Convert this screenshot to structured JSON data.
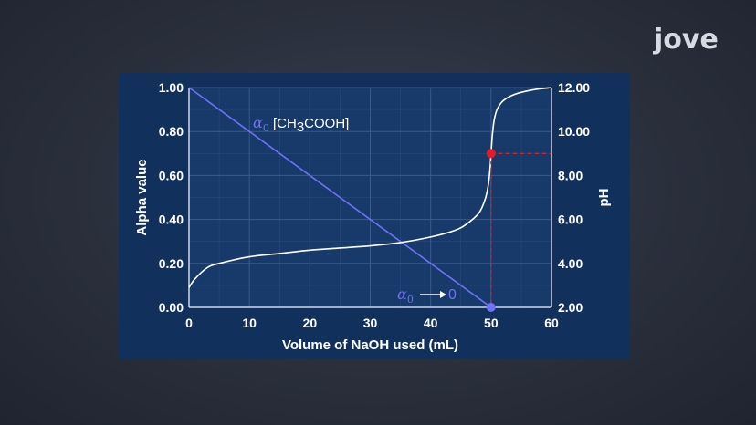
{
  "logo": {
    "text": "jove"
  },
  "colors": {
    "alpha_line": "#6f72f5",
    "ph_curve": "#ffffff",
    "equivalence_marker": "#e11d2a",
    "alpha_zero_marker": "#6f72f5",
    "grid": "#3a5a8a",
    "panel": "#12305c"
  },
  "chart_data": {
    "type": "line",
    "xlabel": "Volume of NaOH used (mL)",
    "ylabel": "Alpha value",
    "y2label": "pH",
    "xlim": [
      0,
      60
    ],
    "ylim": [
      0,
      1
    ],
    "y2lim": [
      2,
      12
    ],
    "x_ticks": [
      "0",
      "10",
      "20",
      "30",
      "40",
      "50",
      "60"
    ],
    "y_ticks": [
      "0.00",
      "0.20",
      "0.40",
      "0.60",
      "0.80",
      "1.00"
    ],
    "y2_ticks": [
      "2.00",
      "4.00",
      "6.00",
      "8.00",
      "10.00",
      "12.00"
    ],
    "grid": true,
    "series": [
      {
        "name": "α0 [CH3COOH]",
        "axis": "left",
        "x": [
          0,
          50
        ],
        "y": [
          1.0,
          0.0
        ]
      },
      {
        "name": "pH",
        "axis": "right",
        "x": [
          0,
          1,
          3,
          5,
          10,
          15,
          20,
          25,
          30,
          35,
          40,
          44,
          46,
          48,
          49,
          49.5,
          49.8,
          50,
          50.2,
          50.5,
          51,
          52,
          54,
          57,
          60
        ],
        "y": [
          2.9,
          3.3,
          3.8,
          4.0,
          4.3,
          4.45,
          4.6,
          4.7,
          4.8,
          4.95,
          5.2,
          5.5,
          5.8,
          6.3,
          6.9,
          7.5,
          8.2,
          9.0,
          9.8,
          10.5,
          11.0,
          11.4,
          11.7,
          11.9,
          12.0
        ]
      }
    ],
    "markers": [
      {
        "name": "equivalence-point",
        "x": 50,
        "y2": 9.0
      },
      {
        "name": "alpha-zero-point",
        "x": 50,
        "y": 0.0
      }
    ],
    "annotations": {
      "alpha_label_symbol": "α",
      "alpha_label_sub": "0",
      "alpha_label_species": "[CH",
      "alpha_label_species_sub": "3",
      "alpha_label_species_rest": "COOH]",
      "alpha_zero_symbol": "α",
      "alpha_zero_sub": "0",
      "alpha_zero_value": "0"
    }
  }
}
